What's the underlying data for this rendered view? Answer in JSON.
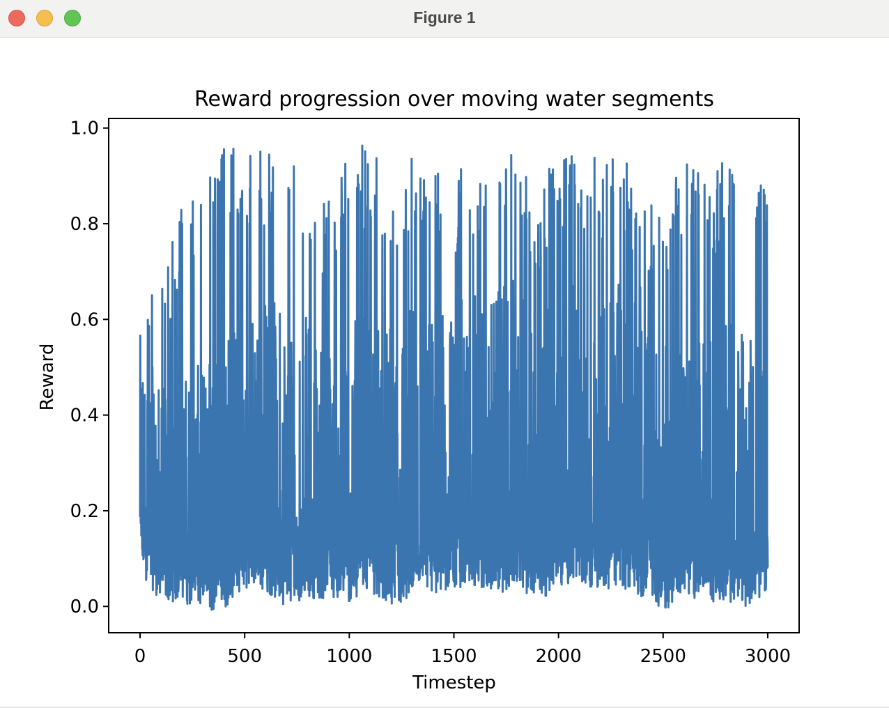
{
  "window": {
    "title": "Figure 1",
    "controls": [
      "close",
      "minimize",
      "maximize"
    ]
  },
  "chart_data": {
    "type": "line",
    "title": "Reward progression over moving water segments",
    "xlabel": "Timestep",
    "ylabel": "Reward",
    "xlim": [
      -150,
      3150
    ],
    "ylim": [
      -0.055,
      1.02
    ],
    "xticks": [
      0,
      500,
      1000,
      1500,
      2000,
      2500,
      3000
    ],
    "xtick_labels": [
      "0",
      "500",
      "1000",
      "1500",
      "2000",
      "2500",
      "3000"
    ],
    "yticks": [
      0.0,
      0.2,
      0.4,
      0.6,
      0.8,
      1.0
    ],
    "ytick_labels": [
      "0.0",
      "0.2",
      "0.4",
      "0.6",
      "0.8",
      "1.0"
    ],
    "grid": false,
    "color": "#3b75af",
    "series": [
      {
        "x": [
          0,
          100,
          200,
          300,
          400,
          500,
          600,
          700,
          800,
          900,
          1000,
          1100,
          1200,
          1300,
          1400,
          1500,
          1600,
          1700,
          1800,
          1900,
          2000,
          2100,
          2200,
          2300,
          2400,
          2500,
          2600,
          2700,
          2800,
          2900,
          3000
        ],
        "y_min": [
          0.07,
          0.01,
          0.01,
          -0.01,
          -0.01,
          0.04,
          0.03,
          0.0,
          0.02,
          0.01,
          0.0,
          0.03,
          -0.01,
          0.01,
          0.02,
          0.03,
          0.04,
          0.03,
          0.03,
          0.01,
          0.04,
          0.05,
          0.03,
          0.04,
          0.02,
          -0.01,
          0.02,
          0.01,
          0.01,
          0.0,
          0.03
        ],
        "y_max": [
          0.68,
          0.73,
          0.84,
          0.9,
          0.96,
          0.97,
          0.96,
          0.93,
          0.91,
          0.86,
          0.97,
          0.96,
          0.89,
          0.96,
          0.92,
          0.9,
          0.95,
          0.93,
          0.96,
          0.86,
          0.97,
          0.96,
          0.93,
          0.96,
          0.83,
          0.86,
          0.96,
          0.88,
          0.96,
          0.96,
          0.89
        ],
        "y_typical": [
          0.25,
          0.22,
          0.24,
          0.26,
          0.3,
          0.3,
          0.32,
          0.33,
          0.3,
          0.28,
          0.3,
          0.31,
          0.3,
          0.33,
          0.3,
          0.3,
          0.33,
          0.32,
          0.34,
          0.3,
          0.32,
          0.32,
          0.33,
          0.33,
          0.3,
          0.28,
          0.27,
          0.28,
          0.3,
          0.29,
          0.26
        ]
      }
    ]
  }
}
